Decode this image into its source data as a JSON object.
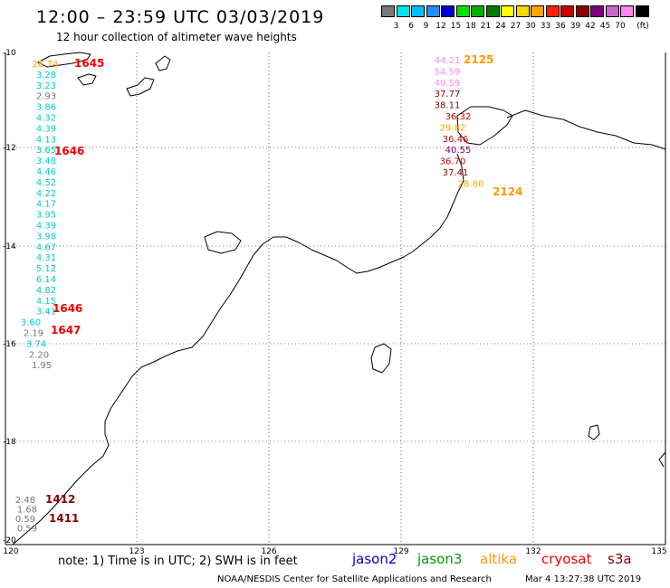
{
  "header": {
    "title": "12:00 – 23:59 UTC 03/03/2019",
    "subtitle": "12 hour collection of altimeter wave heights"
  },
  "legend": {
    "unit": "(ft)",
    "items": [
      {
        "label": "",
        "color": "#7a7a7a"
      },
      {
        "label": "3",
        "color": "#00e5e5"
      },
      {
        "label": "6",
        "color": "#00bfff"
      },
      {
        "label": "9",
        "color": "#1e90ff"
      },
      {
        "label": "12",
        "color": "#0000cc"
      },
      {
        "label": "15",
        "color": "#00e000"
      },
      {
        "label": "18",
        "color": "#00b000"
      },
      {
        "label": "21",
        "color": "#007a00"
      },
      {
        "label": "24",
        "color": "#ffff00"
      },
      {
        "label": "27",
        "color": "#ffd700"
      },
      {
        "label": "30",
        "color": "#ffa500"
      },
      {
        "label": "33",
        "color": "#ff2000"
      },
      {
        "label": "36",
        "color": "#c80000"
      },
      {
        "label": "39",
        "color": "#8b0000"
      },
      {
        "label": "42",
        "color": "#800080"
      },
      {
        "label": "45",
        "color": "#cc66cc"
      },
      {
        "label": "70",
        "color": "#ff88ee"
      },
      {
        "label": "",
        "color": "#000000"
      }
    ]
  },
  "axes": {
    "x_ticks": [
      "120",
      "123",
      "126",
      "129",
      "132",
      "135"
    ],
    "y_ticks": [
      "-10",
      "-12",
      "-14",
      "-16",
      "-18",
      "-20"
    ]
  },
  "track_west": [
    {
      "v": "28.74",
      "c": "#ffa500"
    },
    {
      "v": "3.28",
      "c": "#00cccc"
    },
    {
      "v": "3.23",
      "c": "#00cccc"
    },
    {
      "v": "2.93",
      "c": "#777777"
    },
    {
      "v": "3.86",
      "c": "#00cccc"
    },
    {
      "v": "4.32",
      "c": "#00cccc"
    },
    {
      "v": "4.39",
      "c": "#00cccc"
    },
    {
      "v": "4.13",
      "c": "#00cccc"
    },
    {
      "v": "3.65",
      "c": "#00cccc"
    },
    {
      "v": "3.48",
      "c": "#00cccc"
    },
    {
      "v": "4.46",
      "c": "#00cccc"
    },
    {
      "v": "4.52",
      "c": "#00cccc"
    },
    {
      "v": "4.22",
      "c": "#00cccc"
    },
    {
      "v": "4.17",
      "c": "#00cccc"
    },
    {
      "v": "3.95",
      "c": "#00cccc"
    },
    {
      "v": "4.39",
      "c": "#00cccc"
    },
    {
      "v": "3.98",
      "c": "#00cccc"
    },
    {
      "v": "4.67",
      "c": "#00cccc"
    },
    {
      "v": "4.31",
      "c": "#00cccc"
    },
    {
      "v": "5.12",
      "c": "#00cccc"
    },
    {
      "v": "6.14",
      "c": "#00cccc"
    },
    {
      "v": "4.82",
      "c": "#00cccc"
    },
    {
      "v": "4.15",
      "c": "#00cccc"
    },
    {
      "v": "3.41",
      "c": "#00cccc"
    },
    {
      "v": "3.60",
      "c": "#00cccc"
    },
    {
      "v": "2.19",
      "c": "#777777"
    },
    {
      "v": "3.74",
      "c": "#00cccc"
    },
    {
      "v": "2.20",
      "c": "#777777"
    },
    {
      "v": "1.95",
      "c": "#777777"
    }
  ],
  "track_west_times": [
    "1645",
    "1646",
    "1646",
    "1647"
  ],
  "track_east": [
    {
      "v": "44.21",
      "c": "#ff88ee"
    },
    {
      "v": "54.59",
      "c": "#ff88ee"
    },
    {
      "v": "49.59",
      "c": "#ff88ee"
    },
    {
      "v": "37.77",
      "c": "#8b0000"
    },
    {
      "v": "38.11",
      "c": "#8b0000"
    },
    {
      "v": "36.32",
      "c": "#c80000"
    },
    {
      "v": "29.82",
      "c": "#ffa500"
    },
    {
      "v": "36.46",
      "c": "#c80000"
    },
    {
      "v": "40.55",
      "c": "#800080"
    },
    {
      "v": "36.70",
      "c": "#c80000"
    },
    {
      "v": "37.41",
      "c": "#8b0000"
    },
    {
      "v": "28.80",
      "c": "#ffa500"
    }
  ],
  "track_east_times": [
    "2125",
    "2124"
  ],
  "track_south": [
    {
      "v": "2.48",
      "c": "#777777"
    },
    {
      "v": "1.68",
      "c": "#777777"
    },
    {
      "v": "0.59",
      "c": "#777777"
    },
    {
      "v": "0.59",
      "c": "#777777"
    }
  ],
  "track_south_times": [
    "1412",
    "1411"
  ],
  "footer": {
    "note": "note: 1) Time is in UTC; 2) SWH is in feet",
    "satellites": [
      {
        "name": "jason2",
        "color": "#0000cc"
      },
      {
        "name": "jason3",
        "color": "#009900"
      },
      {
        "name": "altika",
        "color": "#ff9900"
      },
      {
        "name": "cryosat",
        "color": "#ee0000"
      },
      {
        "name": "s3a",
        "color": "#8b0000"
      }
    ],
    "credit": "NOAA/NESDIS Center for Satellite Applications and Research",
    "generated": "Mar  4 13:27:38 UTC 2019"
  }
}
